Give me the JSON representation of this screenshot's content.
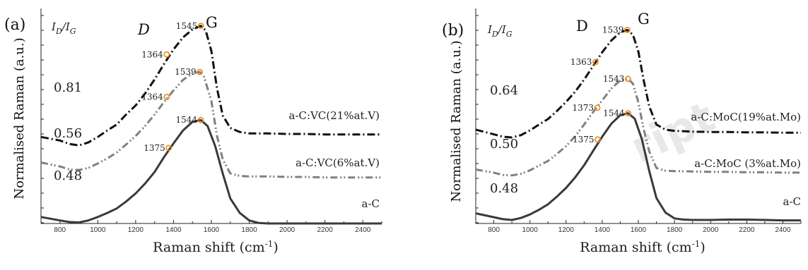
{
  "watermark": "ript",
  "chart_data": [
    {
      "type": "line",
      "panel_label": "(a)",
      "xlabel": "Raman shift (cm",
      "xlabel_sup": "-1",
      "xlabel_close": ")",
      "ylabel": "Normalised Raman (a.u.)",
      "xlim": [
        700,
        2500
      ],
      "xticks": [
        800,
        1000,
        1200,
        1400,
        1600,
        1800,
        2000,
        2200,
        2400
      ],
      "ratio_header": {
        "i1": "I",
        "s1": "D",
        "slash": "/",
        "i2": "I",
        "s2": "G"
      },
      "band_labels": {
        "d": "D",
        "g": "G"
      },
      "series": [
        {
          "name": "a-C:VC(21%at.V)",
          "ratio": "0.81",
          "style": "dashdot",
          "color": "#111111",
          "x": [
            700,
            800,
            850,
            900,
            950,
            1000,
            1050,
            1100,
            1150,
            1200,
            1250,
            1300,
            1350,
            1400,
            1450,
            1500,
            1530,
            1545,
            1570,
            1600,
            1630,
            1660,
            1700,
            1750,
            1800,
            1900,
            2000,
            2100,
            2200,
            2300,
            2400,
            2500
          ],
          "y": [
            17.3,
            16.6,
            15.9,
            15.6,
            16.2,
            17.3,
            18.6,
            19.8,
            21.8,
            23.6,
            26.0,
            28.8,
            31.9,
            34.8,
            37.2,
            38.8,
            39.3,
            39.5,
            38.6,
            34.5,
            27.0,
            21.6,
            19.1,
            18.3,
            18.0,
            18.0,
            17.9,
            17.9,
            17.8,
            17.8,
            17.8,
            17.8
          ],
          "markers": [
            {
              "x": 1364,
              "y": 33.8,
              "label": "1364"
            },
            {
              "x": 1545,
              "y": 39.5,
              "label": "1545"
            }
          ]
        },
        {
          "name": "a-C:VC(6%at.V)",
          "ratio": "0.56",
          "style": "dashdotdot",
          "color": "#808080",
          "x": [
            700,
            800,
            850,
            900,
            950,
            1000,
            1050,
            1100,
            1150,
            1200,
            1250,
            1300,
            1350,
            1400,
            1450,
            1500,
            1539,
            1560,
            1600,
            1630,
            1660,
            1700,
            1750,
            1800,
            1900,
            2000,
            2100,
            2200,
            2300,
            2400,
            2500
          ],
          "y": [
            12.2,
            11.4,
            10.8,
            10.7,
            11.1,
            12.0,
            13.0,
            14.2,
            15.8,
            17.5,
            19.5,
            21.8,
            24.3,
            26.6,
            28.7,
            30.0,
            30.3,
            29.5,
            24.5,
            17.5,
            12.8,
            10.0,
            9.5,
            9.4,
            9.4,
            9.3,
            9.3,
            9.2,
            9.2,
            9.2,
            9.2
          ],
          "markers": [
            {
              "x": 1364,
              "y": 25.3,
              "label": "1364"
            },
            {
              "x": 1539,
              "y": 30.3,
              "label": "1539"
            }
          ]
        },
        {
          "name": "a-C",
          "ratio": "0.48",
          "style": "solid",
          "color": "#3a3a3a",
          "x": [
            700,
            800,
            850,
            900,
            950,
            1000,
            1050,
            1100,
            1150,
            1200,
            1250,
            1300,
            1350,
            1400,
            1450,
            1500,
            1544,
            1580,
            1620,
            1660,
            1700,
            1750,
            1800,
            1850,
            1900,
            2000,
            2100,
            2200,
            2300,
            2400,
            2500
          ],
          "y": [
            1.3,
            0.6,
            0.3,
            0.2,
            0.6,
            1.3,
            2.1,
            3.0,
            4.4,
            6.0,
            8.0,
            10.3,
            13.3,
            16.0,
            18.6,
            20.3,
            20.7,
            19.5,
            15.5,
            10.0,
            5.0,
            2.1,
            0.6,
            0.1,
            0.0,
            0.0,
            0.0,
            0.0,
            0.0,
            0.0,
            0.0
          ],
          "markers": [
            {
              "x": 1375,
              "y": 15.1,
              "label": "1375"
            },
            {
              "x": 1544,
              "y": 20.7,
              "label": "1544"
            }
          ]
        }
      ]
    },
    {
      "type": "line",
      "panel_label": "(b)",
      "xlabel": "Raman shift (cm",
      "xlabel_sup": "-1",
      "xlabel_close": ")",
      "ylabel": "Normalised Raman (a.u.)",
      "xlim": [
        700,
        2500
      ],
      "xticks": [
        800,
        1000,
        1200,
        1400,
        1600,
        1800,
        2000,
        2200,
        2400
      ],
      "ratio_header": {
        "i1": "I",
        "s1": "D",
        "slash": "/",
        "i2": "I",
        "s2": "G"
      },
      "band_labels": {
        "d": "D",
        "g": "G"
      },
      "series": [
        {
          "name": "a-C:MoC(19%at.Mo)",
          "ratio": "0.64",
          "style": "dashdot",
          "color": "#111111",
          "x": [
            700,
            800,
            850,
            900,
            950,
            1000,
            1050,
            1100,
            1150,
            1200,
            1250,
            1300,
            1350,
            1400,
            1450,
            1500,
            1539,
            1570,
            1600,
            1630,
            1660,
            1700,
            1750,
            1800,
            1900,
            2000,
            2100,
            2200,
            2300,
            2400,
            2500
          ],
          "y": [
            24.0,
            22.8,
            22.2,
            22.0,
            22.6,
            23.8,
            25.3,
            26.7,
            28.8,
            31.1,
            33.7,
            36.8,
            40.3,
            43.8,
            46.8,
            48.9,
            49.5,
            48.3,
            44.0,
            36.5,
            30.0,
            25.3,
            24.0,
            23.7,
            23.5,
            23.4,
            23.4,
            23.3,
            23.3,
            23.2,
            23.2
          ],
          "markers": [
            {
              "x": 1363,
              "y": 41.3,
              "label": "1363"
            },
            {
              "x": 1539,
              "y": 49.5,
              "label": "1539"
            }
          ]
        },
        {
          "name": "a-C:MoC (3%at.Mo)",
          "ratio": "0.50",
          "style": "dashdotdot",
          "color": "#808080",
          "x": [
            700,
            800,
            850,
            900,
            950,
            1000,
            1050,
            1100,
            1150,
            1200,
            1250,
            1300,
            1350,
            1400,
            1450,
            1500,
            1543,
            1570,
            1600,
            1630,
            1660,
            1700,
            1750,
            1800,
            1900,
            2000,
            2100,
            2200,
            2300,
            2400,
            2500
          ],
          "y": [
            13.8,
            13.0,
            12.4,
            12.3,
            12.7,
            13.6,
            14.8,
            16.0,
            17.8,
            19.8,
            22.3,
            25.3,
            28.5,
            31.5,
            34.5,
            36.6,
            37.0,
            35.8,
            31.0,
            24.0,
            18.5,
            14.2,
            13.5,
            13.4,
            13.3,
            13.2,
            13.2,
            13.1,
            13.1,
            13.0,
            13.0
          ],
          "markers": [
            {
              "x": 1373,
              "y": 29.6,
              "label": "1373"
            },
            {
              "x": 1543,
              "y": 37.0,
              "label": "1543"
            }
          ]
        },
        {
          "name": "a-C",
          "ratio": "0.48",
          "style": "solid",
          "color": "#3a3a3a",
          "x": [
            700,
            800,
            850,
            900,
            950,
            1000,
            1050,
            1100,
            1150,
            1200,
            1250,
            1300,
            1350,
            1400,
            1450,
            1500,
            1544,
            1580,
            1620,
            1660,
            1700,
            1750,
            1800,
            1850,
            1900,
            2000,
            2100,
            2200,
            2300,
            2400,
            2500
          ],
          "y": [
            2.6,
            1.6,
            1.1,
            0.9,
            1.4,
            2.3,
            3.5,
            4.9,
            6.9,
            9.1,
            11.8,
            14.9,
            18.6,
            22.2,
            25.5,
            27.7,
            28.2,
            26.8,
            21.5,
            13.5,
            6.5,
            2.8,
            1.3,
            1.0,
            0.9,
            0.9,
            1.0,
            1.0,
            0.9,
            0.8,
            0.8
          ],
          "markers": [
            {
              "x": 1375,
              "y": 21.5,
              "label": "1375"
            },
            {
              "x": 1544,
              "y": 28.2,
              "label": "1544"
            }
          ]
        }
      ]
    }
  ]
}
